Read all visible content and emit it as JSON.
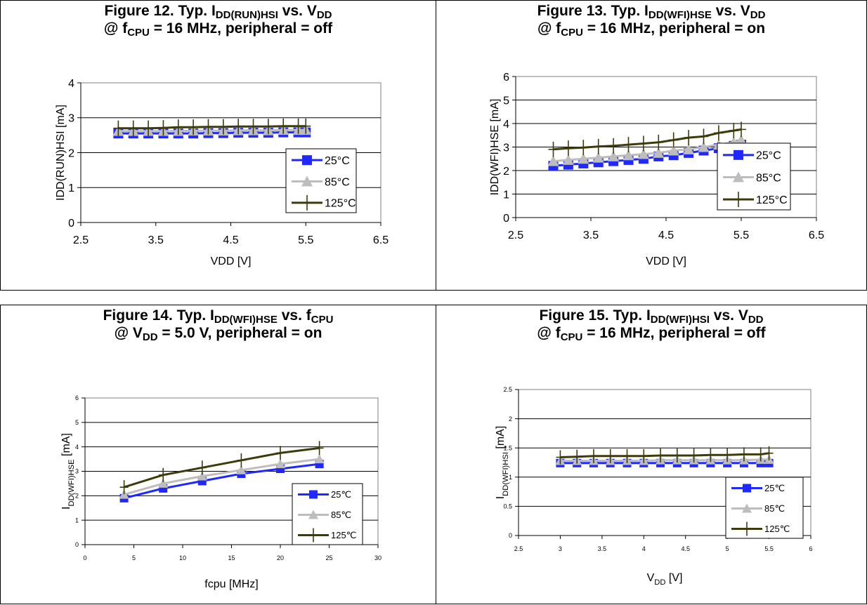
{
  "colors": {
    "s25": "#1f28ff",
    "s85": "#bdbdbd",
    "s125": "#3d3b0b",
    "grid": "#000000",
    "plot_border": "#808080"
  },
  "chart_data": [
    {
      "type": "line",
      "title": {
        "l1": [
          "Figure 12. Typ. I",
          "DD(RUN)HSI",
          " vs. V",
          "DD",
          ""
        ],
        "l2": [
          "@ f",
          "CPU",
          " = 16 MHz, peripheral = off"
        ]
      },
      "xlabel": "VDD [V]",
      "ylabel": "IDD(RUN)HSI [mA]",
      "xlim": [
        2.5,
        6.5
      ],
      "ylim": [
        0,
        4
      ],
      "xticks": [
        "2.5",
        "3.5",
        "4.5",
        "5.5",
        "6.5"
      ],
      "yticks": [
        "0",
        "1",
        "2",
        "3",
        "4"
      ],
      "legend": [
        "25°C",
        "85°C",
        "125°C"
      ],
      "series": [
        {
          "name": "25°C",
          "x": [
            3.0,
            3.2,
            3.4,
            3.6,
            3.8,
            4.0,
            4.2,
            4.4,
            4.6,
            4.8,
            5.0,
            5.2,
            5.4,
            5.5
          ],
          "y": [
            2.55,
            2.55,
            2.55,
            2.55,
            2.55,
            2.55,
            2.56,
            2.56,
            2.57,
            2.57,
            2.57,
            2.58,
            2.58,
            2.58
          ]
        },
        {
          "name": "85°C",
          "x": [
            3.0,
            3.2,
            3.4,
            3.6,
            3.8,
            4.0,
            4.2,
            4.4,
            4.6,
            4.8,
            5.0,
            5.2,
            5.4,
            5.5
          ],
          "y": [
            2.62,
            2.62,
            2.62,
            2.62,
            2.62,
            2.63,
            2.63,
            2.63,
            2.64,
            2.64,
            2.64,
            2.65,
            2.65,
            2.65
          ]
        },
        {
          "name": "125°C",
          "x": [
            3.0,
            3.2,
            3.4,
            3.6,
            3.8,
            4.0,
            4.2,
            4.4,
            4.6,
            4.8,
            5.0,
            5.2,
            5.4,
            5.5
          ],
          "y": [
            2.7,
            2.7,
            2.7,
            2.71,
            2.73,
            2.73,
            2.74,
            2.74,
            2.75,
            2.75,
            2.75,
            2.76,
            2.76,
            2.76
          ]
        }
      ]
    },
    {
      "type": "line",
      "title": {
        "l1": [
          "Figure 13. Typ. I",
          "DD(WFI)HSE",
          " vs. V",
          "DD",
          ""
        ],
        "l2": [
          "@ f",
          "CPU",
          " = 16 MHz, peripheral = on"
        ]
      },
      "xlabel": "VDD [V]",
      "ylabel": "IDD(WFI)HSE [mA]",
      "xlim": [
        2.5,
        6.5
      ],
      "ylim": [
        0,
        6
      ],
      "xticks": [
        "2.5",
        "3.5",
        "4.5",
        "5.5",
        "6.5"
      ],
      "yticks": [
        "0",
        "1",
        "2",
        "3",
        "4",
        "5",
        "6"
      ],
      "legend": [
        "25°C",
        "85°C",
        "125°C"
      ],
      "series": [
        {
          "name": "25°C",
          "x": [
            3.0,
            3.2,
            3.4,
            3.6,
            3.8,
            4.0,
            4.2,
            4.4,
            4.6,
            4.8,
            5.0,
            5.2,
            5.4,
            5.5
          ],
          "y": [
            2.2,
            2.25,
            2.3,
            2.35,
            2.4,
            2.45,
            2.5,
            2.6,
            2.65,
            2.75,
            2.85,
            2.95,
            3.05,
            3.1
          ]
        },
        {
          "name": "85°C",
          "x": [
            3.0,
            3.2,
            3.4,
            3.6,
            3.8,
            4.0,
            4.2,
            4.4,
            4.6,
            4.8,
            5.0,
            5.2,
            5.4,
            5.5
          ],
          "y": [
            2.4,
            2.45,
            2.5,
            2.55,
            2.6,
            2.65,
            2.7,
            2.75,
            2.85,
            2.9,
            3.0,
            3.1,
            3.2,
            3.3
          ]
        },
        {
          "name": "125°C",
          "x": [
            3.0,
            3.2,
            3.4,
            3.6,
            3.8,
            4.0,
            4.2,
            4.4,
            4.6,
            4.8,
            5.0,
            5.2,
            5.4,
            5.5
          ],
          "y": [
            2.9,
            2.95,
            2.98,
            3.02,
            3.05,
            3.1,
            3.15,
            3.2,
            3.3,
            3.4,
            3.45,
            3.6,
            3.7,
            3.75
          ]
        }
      ]
    },
    {
      "type": "line",
      "title": {
        "l1": [
          "Figure 14. Typ. I",
          "DD(WFI)HSE",
          " vs. f",
          "CPU",
          ""
        ],
        "l2": [
          "@ V",
          "DD",
          " = 5.0 V, peripheral = on"
        ]
      },
      "xlabel": "fcpu [MHz]",
      "ylabel": "I",
      "ylabel_sub": "DD(WFI)HSE",
      "ylabel_tail": "   [mA]",
      "xlim": [
        0,
        30
      ],
      "ylim": [
        0,
        6
      ],
      "xticks": [
        "0",
        "5",
        "10",
        "15",
        "20",
        "25",
        "30"
      ],
      "yticks": [
        "0",
        "1",
        "2",
        "3",
        "4",
        "5",
        "6"
      ],
      "legend": [
        "25℃",
        "85℃",
        "125℃"
      ],
      "series": [
        {
          "name": "25℃",
          "x": [
            4,
            8,
            12,
            16,
            20,
            24
          ],
          "y": [
            1.9,
            2.3,
            2.6,
            2.9,
            3.1,
            3.3
          ]
        },
        {
          "name": "85℃",
          "x": [
            4,
            8,
            12,
            16,
            20,
            24
          ],
          "y": [
            2.05,
            2.5,
            2.8,
            3.05,
            3.3,
            3.5
          ]
        },
        {
          "name": "125℃",
          "x": [
            4,
            8,
            12,
            16,
            20,
            24
          ],
          "y": [
            2.35,
            2.85,
            3.15,
            3.45,
            3.75,
            3.95
          ]
        }
      ]
    },
    {
      "type": "line",
      "title": {
        "l1": [
          "Figure 15. Typ. I",
          "DD(WFI)HSI",
          " vs. V",
          "DD",
          ""
        ],
        "l2": [
          "@ f",
          "CPU",
          " = 16 MHz, peripheral = off"
        ]
      },
      "xlabel": "V",
      "xlabel_sub": "DD",
      "xlabel_tail": " [V]",
      "ylabel": "I",
      "ylabel_sub": "DD(WFI)HSI",
      "ylabel_tail": "  [mA]",
      "xlim": [
        2.5,
        6
      ],
      "ylim": [
        0,
        2.5
      ],
      "xticks": [
        "2.5",
        "3",
        "3.5",
        "4",
        "4.5",
        "5",
        "5.5",
        "6"
      ],
      "yticks": [
        "0",
        "0.5",
        "1",
        "1.5",
        "2",
        "2.5"
      ],
      "legend": [
        "25℃",
        "85℃",
        "125℃"
      ],
      "series": [
        {
          "name": "25℃",
          "x": [
            3.0,
            3.2,
            3.4,
            3.6,
            3.8,
            4.0,
            4.2,
            4.4,
            4.6,
            4.8,
            5.0,
            5.2,
            5.4,
            5.5
          ],
          "y": [
            1.24,
            1.24,
            1.24,
            1.24,
            1.24,
            1.24,
            1.24,
            1.24,
            1.24,
            1.24,
            1.24,
            1.24,
            1.24,
            1.24
          ]
        },
        {
          "name": "85℃",
          "x": [
            3.0,
            3.2,
            3.4,
            3.6,
            3.8,
            4.0,
            4.2,
            4.4,
            4.6,
            4.8,
            5.0,
            5.2,
            5.4,
            5.5
          ],
          "y": [
            1.28,
            1.28,
            1.28,
            1.28,
            1.28,
            1.28,
            1.29,
            1.29,
            1.29,
            1.29,
            1.29,
            1.29,
            1.3,
            1.3
          ]
        },
        {
          "name": "125℃",
          "x": [
            3.0,
            3.2,
            3.4,
            3.6,
            3.8,
            4.0,
            4.2,
            4.4,
            4.6,
            4.8,
            5.0,
            5.2,
            5.4,
            5.5
          ],
          "y": [
            1.34,
            1.35,
            1.36,
            1.36,
            1.36,
            1.36,
            1.37,
            1.37,
            1.37,
            1.38,
            1.38,
            1.39,
            1.39,
            1.41
          ]
        }
      ]
    }
  ]
}
